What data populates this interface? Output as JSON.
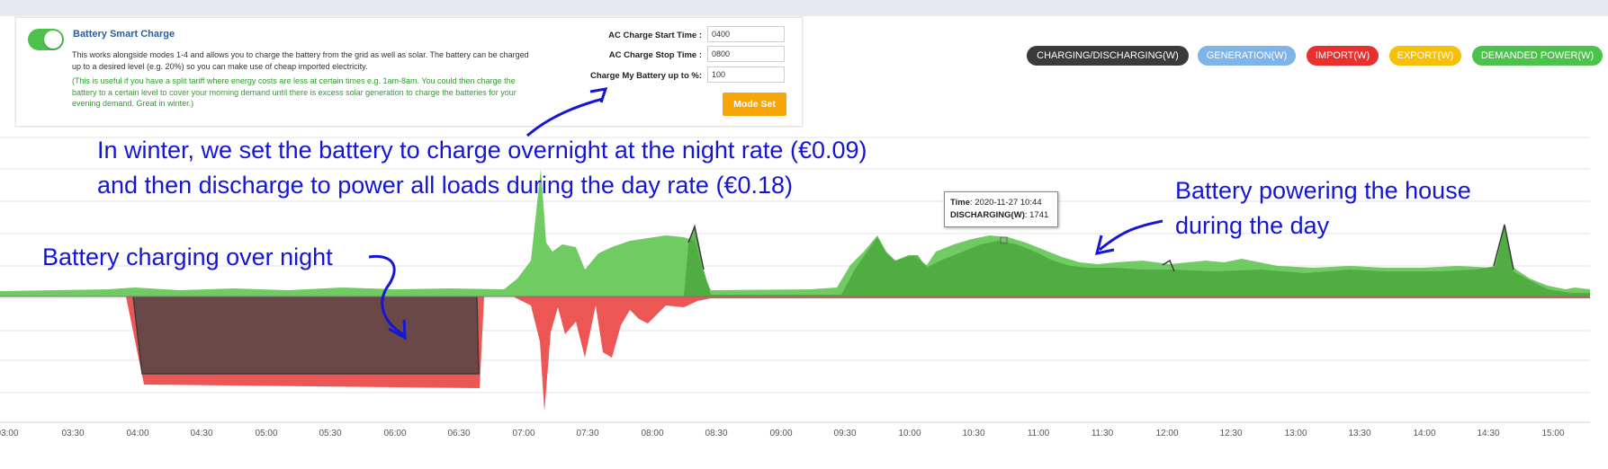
{
  "panel": {
    "title": "Battery Smart Charge",
    "toggle_on": true,
    "description": "This works alongside modes 1-4 and allows you to charge the battery from the grid as well as solar. The battery can be charged up to a desired level (e.g. 20%) so you can make use of cheap imported electricity.",
    "note": "(This is useful if you have a split tariff where energy costs are less at certain times e.g. 1am-8am. You could then charge the battery to a certain level to cover your morning demand until there is excess solar generation to charge the batteries for your evening demand. Great in winter.)",
    "fields": [
      {
        "label": "AC Charge Start Time :",
        "value": "0400"
      },
      {
        "label": "AC Charge Stop Time :",
        "value": "0800"
      },
      {
        "label": "Charge My Battery up to %:",
        "value": "100"
      }
    ],
    "button_label": "Mode Set"
  },
  "legend": [
    {
      "label": "CHARGING/DISCHARGING(W)",
      "color": "#3a3a3a"
    },
    {
      "label": "GENERATION(W)",
      "color": "#7eb4e8"
    },
    {
      "label": "IMPORT(W)",
      "color": "#e8312e"
    },
    {
      "label": "EXPORT(W)",
      "color": "#f7c008"
    },
    {
      "label": "DEMANDED POWER(W)",
      "color": "#4cc24c"
    }
  ],
  "annotations": {
    "winter_line1": "In winter, we set the battery to charge overnight at the night rate (€0.09)",
    "winter_line2": "and then discharge to power all loads during the day rate (€0.18)",
    "charging": "Battery charging over night",
    "powering_line1": "Battery powering the house",
    "powering_line2": "during the day"
  },
  "tooltip": {
    "time_label": "Time",
    "time_value": "2020-11-27 10:44",
    "series_label": "DISCHARGING(W)",
    "series_value": "1741"
  },
  "chart_data": {
    "type": "area",
    "x_ticks": [
      "03:00",
      "03:30",
      "04:00",
      "04:30",
      "05:00",
      "05:30",
      "06:00",
      "06:30",
      "07:00",
      "07:30",
      "08:00",
      "08:30",
      "09:00",
      "09:30",
      "10:00",
      "10:30",
      "11:00",
      "11:30",
      "12:00",
      "12:30",
      "13:00",
      "13:30",
      "14:00",
      "14:30",
      "15:00"
    ],
    "series_colors": {
      "demanded": "#62c552",
      "charging_discharging": "#3a3a3a",
      "import": "#e8312e",
      "battery_charge": "#6a4848"
    }
  }
}
